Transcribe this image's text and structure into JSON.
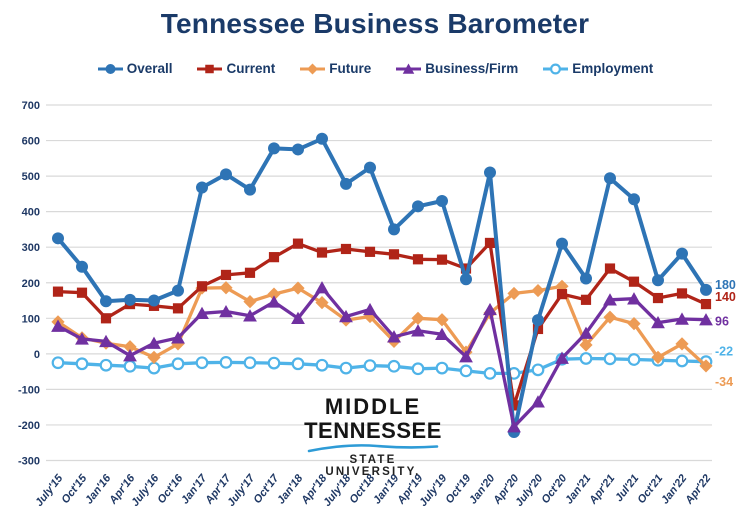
{
  "title": "Tennessee Business Barometer",
  "watermark": {
    "line1": "MIDDLE",
    "line2": "TENNESSEE",
    "line3": "STATE UNIVERSITY."
  },
  "legend": {
    "items": [
      {
        "key": "overall",
        "label": "Overall"
      },
      {
        "key": "current",
        "label": "Current"
      },
      {
        "key": "future",
        "label": "Future"
      },
      {
        "key": "business-firm",
        "label": "Business/Firm"
      },
      {
        "key": "employment",
        "label": "Employment"
      }
    ]
  },
  "chart_data": {
    "type": "line",
    "title": "Tennessee Business Barometer",
    "xlabel": "",
    "ylabel": "",
    "ylim": [
      -300,
      700
    ],
    "y_ticks": [
      700,
      600,
      500,
      400,
      300,
      200,
      100,
      0,
      -100,
      -200,
      -300
    ],
    "grid": "horizontal",
    "legend_position": "top",
    "categories": [
      "July'15",
      "Oct'15",
      "Jan'16",
      "Apr'16",
      "July'16",
      "Oct'16",
      "Jan'17",
      "Apr'17",
      "July'17",
      "Oct'17",
      "Jan'18",
      "Apr'18",
      "July'18",
      "Oct'18",
      "Jan'19",
      "Apr'19",
      "July'19",
      "Oct'19",
      "Jan'20",
      "Apr'20",
      "July'20",
      "Oct'20",
      "Jan'21",
      "Apr'21",
      "Jul'21",
      "Oct'21",
      "Jan'22",
      "Apr'22"
    ],
    "series": [
      {
        "name": "Overall",
        "color": "#2E74B5",
        "marker": "circle",
        "values": [
          325,
          245,
          148,
          152,
          150,
          178,
          468,
          505,
          462,
          578,
          575,
          605,
          478,
          524,
          350,
          415,
          430,
          210,
          510,
          -220,
          95,
          310,
          212,
          494,
          435,
          207,
          282,
          180
        ]
      },
      {
        "name": "Current",
        "color": "#B02418",
        "marker": "square",
        "values": [
          175,
          172,
          100,
          140,
          135,
          128,
          190,
          222,
          228,
          272,
          310,
          285,
          295,
          287,
          280,
          266,
          265,
          240,
          312,
          -145,
          70,
          168,
          152,
          240,
          203,
          157,
          170,
          140
        ]
      },
      {
        "name": "Future",
        "color": "#ED9B54",
        "marker": "diamond",
        "values": [
          90,
          45,
          30,
          20,
          -10,
          28,
          185,
          186,
          147,
          168,
          185,
          144,
          95,
          105,
          35,
          100,
          96,
          5,
          115,
          170,
          178,
          190,
          25,
          103,
          85,
          -10,
          28,
          -34
        ]
      },
      {
        "name": "Business/Firm",
        "color": "#7030A0",
        "marker": "triangle",
        "values": [
          78,
          42,
          35,
          -5,
          30,
          45,
          114,
          119,
          107,
          146,
          100,
          186,
          105,
          125,
          48,
          65,
          55,
          -8,
          125,
          -205,
          -135,
          -12,
          58,
          152,
          155,
          88,
          98,
          96
        ]
      },
      {
        "name": "Employment",
        "color": "#4FB3E8",
        "marker": "open-circle",
        "values": [
          -25,
          -28,
          -32,
          -35,
          -40,
          -28,
          -25,
          -24,
          -25,
          -26,
          -28,
          -32,
          -40,
          -33,
          -35,
          -42,
          -40,
          -48,
          -55,
          -55,
          -45,
          -15,
          -13,
          -14,
          -16,
          -18,
          -20,
          -22
        ]
      }
    ],
    "end_labels": [
      {
        "series": "Overall",
        "text": "180"
      },
      {
        "series": "Current",
        "text": "140"
      },
      {
        "series": "Business/Firm",
        "text": "96"
      },
      {
        "series": "Employment",
        "text": "-22"
      },
      {
        "series": "Future",
        "text": "-34"
      }
    ]
  }
}
